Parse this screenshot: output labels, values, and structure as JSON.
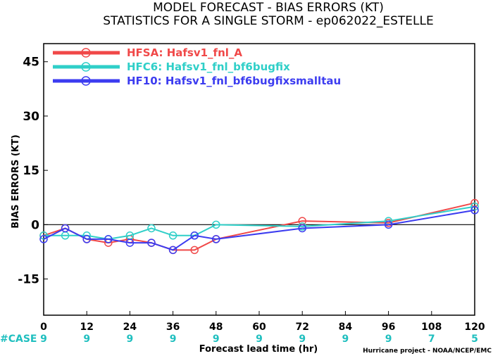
{
  "chart_data": {
    "type": "line",
    "title": "MODEL FORECAST - BIAS ERRORS (KT)",
    "subtitle": "STATISTICS FOR A SINGLE STORM - ep062022_ESTELLE",
    "xlabel": "Forecast lead time (hr)",
    "ylabel": "BIAS ERRORS (KT)",
    "xlim": [
      0,
      120
    ],
    "ylim": [
      -25,
      50
    ],
    "x_ticks": [
      0,
      12,
      24,
      36,
      48,
      60,
      72,
      84,
      96,
      108,
      120
    ],
    "y_ticks": [
      -15,
      0,
      15,
      30,
      45
    ],
    "legend_position": "top-left",
    "series": [
      {
        "name": "HFSA: Hafsv1_fnl_A",
        "color": "#f04848",
        "points": [
          [
            0,
            -3
          ],
          [
            6,
            -1
          ],
          [
            12,
            -4
          ],
          [
            18,
            -5
          ],
          [
            24,
            -4
          ],
          [
            30,
            -5
          ],
          [
            36,
            -7
          ],
          [
            42,
            -7
          ],
          [
            48,
            -4
          ],
          [
            72,
            1
          ],
          [
            96,
            0.5
          ],
          [
            120,
            6
          ]
        ]
      },
      {
        "name": "HFC6: Hafsv1_fnl_bf6bugfix",
        "color": "#2fcfc8",
        "points": [
          [
            0,
            -3
          ],
          [
            6,
            -3
          ],
          [
            12,
            -3
          ],
          [
            18,
            -4
          ],
          [
            24,
            -3
          ],
          [
            30,
            -1
          ],
          [
            36,
            -3
          ],
          [
            42,
            -3
          ],
          [
            48,
            0
          ],
          [
            72,
            -0.5
          ],
          [
            96,
            1
          ],
          [
            120,
            5
          ]
        ]
      },
      {
        "name": "HF10: Hafsv1_fnl_bf6bugfixsmalltau",
        "color": "#3c3cf0",
        "points": [
          [
            0,
            -4
          ],
          [
            6,
            -1
          ],
          [
            12,
            -4
          ],
          [
            18,
            -4
          ],
          [
            24,
            -5
          ],
          [
            30,
            -5
          ],
          [
            36,
            -7
          ],
          [
            42,
            -3
          ],
          [
            48,
            -4
          ],
          [
            72,
            -1
          ],
          [
            96,
            0
          ],
          [
            120,
            4
          ]
        ]
      }
    ],
    "case_label": "#CASE",
    "case_x": [
      0,
      12,
      24,
      36,
      48,
      60,
      72,
      84,
      96,
      108,
      120
    ],
    "case_counts": [
      "9",
      "9",
      "9",
      "9",
      "9",
      "9",
      "9",
      "9",
      "9",
      "7",
      "5"
    ]
  },
  "credit": "Hurricane project - NOAA/NCEP/EMC"
}
